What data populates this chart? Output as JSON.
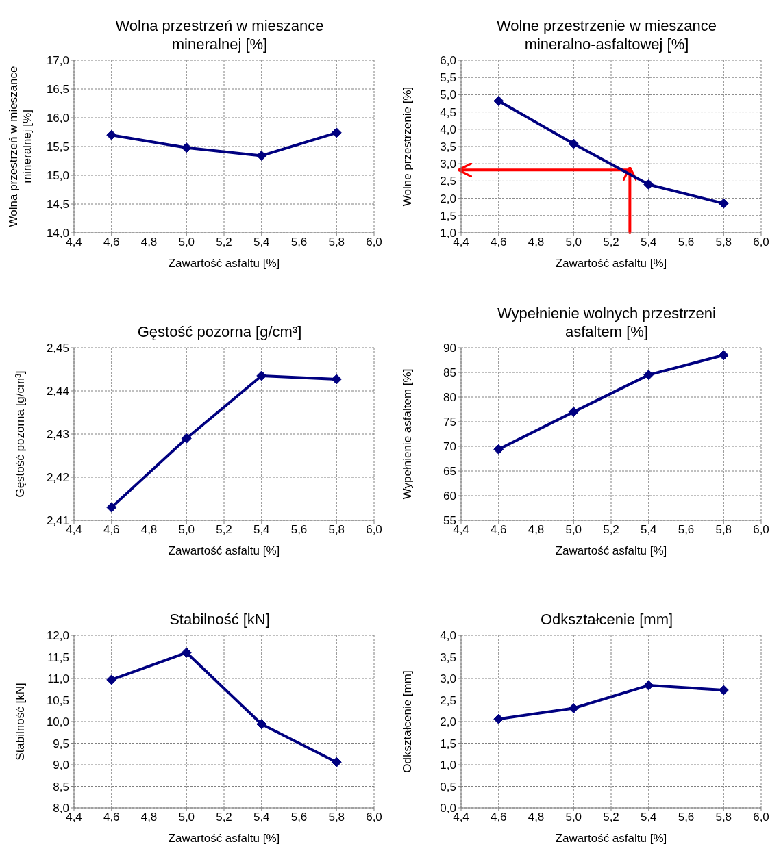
{
  "chart_data": [
    {
      "type": "line",
      "title": "Wolna przestrzeń w mieszance mineralnej [%]",
      "xlabel": "Zawartość asfaltu [%]",
      "ylabel": "Wolna przestrzeń w mieszance mineralnej [%]",
      "x": [
        4.6,
        5.0,
        5.4,
        5.8
      ],
      "series": [
        {
          "color": "#000080",
          "values": [
            15.7,
            15.48,
            15.34,
            15.74
          ]
        }
      ],
      "xlim": [
        4.4,
        6.0
      ],
      "xticks": [
        {
          "value": 4.4,
          "label": "4,4"
        },
        {
          "value": 4.6,
          "label": "4,6"
        },
        {
          "value": 4.8,
          "label": "4,8"
        },
        {
          "value": 5.0,
          "label": "5,0"
        },
        {
          "value": 5.2,
          "label": "5,2"
        },
        {
          "value": 5.4,
          "label": "5,4"
        },
        {
          "value": 5.6,
          "label": "5,6"
        },
        {
          "value": 5.8,
          "label": "5,8"
        },
        {
          "value": 6.0,
          "label": "6,0"
        }
      ],
      "ylim": [
        14,
        17
      ],
      "yticks": [
        {
          "value": 14,
          "label": "14,0"
        },
        {
          "value": 14.5,
          "label": "14,5"
        },
        {
          "value": 15,
          "label": "15,0"
        },
        {
          "value": 15.5,
          "label": "15,5"
        },
        {
          "value": 16,
          "label": "16,0"
        },
        {
          "value": 16.5,
          "label": "16,5"
        },
        {
          "value": 17,
          "label": "17,0"
        }
      ],
      "grid": true,
      "marker": "diamond",
      "line_style": "solid"
    },
    {
      "type": "line",
      "title": "Wolne przestrzenie w mieszance mineralno-asfaltowej [%]",
      "xlabel": "Zawartość asfaltu [%]",
      "ylabel": "Wolne przestrzenie [%]",
      "x": [
        4.6,
        5.0,
        5.4,
        5.8
      ],
      "series": [
        {
          "color": "#000080",
          "values": [
            4.82,
            3.58,
            2.4,
            1.85
          ]
        }
      ],
      "ref_lines": [
        {
          "axis": "x",
          "value": 5.3,
          "color": "#ff0000"
        },
        {
          "axis": "y",
          "value": 2.82,
          "color": "#ff0000"
        }
      ],
      "xlim": [
        4.4,
        6.0
      ],
      "xticks": [
        {
          "value": 4.4,
          "label": "4,4"
        },
        {
          "value": 4.6,
          "label": "4,6"
        },
        {
          "value": 4.8,
          "label": "4,8"
        },
        {
          "value": 5.0,
          "label": "5,0"
        },
        {
          "value": 5.2,
          "label": "5,2"
        },
        {
          "value": 5.4,
          "label": "5,4"
        },
        {
          "value": 5.6,
          "label": "5,6"
        },
        {
          "value": 5.8,
          "label": "5,8"
        },
        {
          "value": 6.0,
          "label": "6,0"
        }
      ],
      "ylim": [
        1,
        6
      ],
      "yticks": [
        {
          "value": 1,
          "label": "1,0"
        },
        {
          "value": 1.5,
          "label": "1,5"
        },
        {
          "value": 2,
          "label": "2,0"
        },
        {
          "value": 2.5,
          "label": "2,5"
        },
        {
          "value": 3,
          "label": "3,0"
        },
        {
          "value": 3.5,
          "label": "3,5"
        },
        {
          "value": 4,
          "label": "4,0"
        },
        {
          "value": 4.5,
          "label": "4,5"
        },
        {
          "value": 5,
          "label": "5,0"
        },
        {
          "value": 5.5,
          "label": "5,5"
        },
        {
          "value": 6,
          "label": "6,0"
        }
      ],
      "grid": true,
      "marker": "diamond",
      "line_style": "solid"
    },
    {
      "type": "line",
      "title": "Gęstość pozorna [g/cm³]",
      "xlabel": "Zawartość asfaltu [%]",
      "ylabel": "Gęstość pozorna [g/cm³]",
      "x": [
        4.6,
        5.0,
        5.4,
        5.8
      ],
      "series": [
        {
          "color": "#000080",
          "values": [
            2.413,
            2.429,
            2.4435,
            2.4427
          ]
        }
      ],
      "xlim": [
        4.4,
        6.0
      ],
      "xticks": [
        {
          "value": 4.4,
          "label": "4,4"
        },
        {
          "value": 4.6,
          "label": "4,6"
        },
        {
          "value": 4.8,
          "label": "4,8"
        },
        {
          "value": 5.0,
          "label": "5,0"
        },
        {
          "value": 5.2,
          "label": "5,2"
        },
        {
          "value": 5.4,
          "label": "5,4"
        },
        {
          "value": 5.6,
          "label": "5,6"
        },
        {
          "value": 5.8,
          "label": "5,8"
        },
        {
          "value": 6.0,
          "label": "6,0"
        }
      ],
      "ylim": [
        2.41,
        2.45
      ],
      "yticks": [
        {
          "value": 2.41,
          "label": "2,41"
        },
        {
          "value": 2.42,
          "label": "2,42"
        },
        {
          "value": 2.43,
          "label": "2,43"
        },
        {
          "value": 2.44,
          "label": "2,44"
        },
        {
          "value": 2.45,
          "label": "2,45"
        }
      ],
      "grid": true,
      "marker": "diamond",
      "line_style": "solid"
    },
    {
      "type": "line",
      "title": "Wypełnienie wolnych przestrzeni asfaltem [%]",
      "xlabel": "Zawartość asfaltu [%]",
      "ylabel": "Wypełnienie asfaltem [%]",
      "x": [
        4.6,
        5.0,
        5.4,
        5.8
      ],
      "series": [
        {
          "color": "#000080",
          "values": [
            69.4,
            77.0,
            84.5,
            88.5
          ]
        }
      ],
      "xlim": [
        4.4,
        6.0
      ],
      "xticks": [
        {
          "value": 4.4,
          "label": "4,4"
        },
        {
          "value": 4.6,
          "label": "4,6"
        },
        {
          "value": 4.8,
          "label": "4,8"
        },
        {
          "value": 5.0,
          "label": "5,0"
        },
        {
          "value": 5.2,
          "label": "5,2"
        },
        {
          "value": 5.4,
          "label": "5,4"
        },
        {
          "value": 5.6,
          "label": "5,6"
        },
        {
          "value": 5.8,
          "label": "5,8"
        },
        {
          "value": 6.0,
          "label": "6,0"
        }
      ],
      "ylim": [
        55,
        90
      ],
      "yticks": [
        55,
        60,
        65,
        70,
        75,
        80,
        85,
        90
      ],
      "grid": true,
      "marker": "diamond",
      "line_style": "solid"
    },
    {
      "type": "line",
      "title": "Stabilność [kN]",
      "xlabel": "Zawartość asfaltu [%]",
      "ylabel": "Stabilność [kN]",
      "x": [
        4.6,
        5.0,
        5.4,
        5.8
      ],
      "series": [
        {
          "color": "#000080",
          "values": [
            10.97,
            11.6,
            9.94,
            9.06
          ]
        }
      ],
      "xlim": [
        4.4,
        6.0
      ],
      "xticks": [
        {
          "value": 4.4,
          "label": "4,4"
        },
        {
          "value": 4.6,
          "label": "4,6"
        },
        {
          "value": 4.8,
          "label": "4,8"
        },
        {
          "value": 5.0,
          "label": "5,0"
        },
        {
          "value": 5.2,
          "label": "5,2"
        },
        {
          "value": 5.4,
          "label": "5,4"
        },
        {
          "value": 5.6,
          "label": "5,6"
        },
        {
          "value": 5.8,
          "label": "5,8"
        },
        {
          "value": 6.0,
          "label": "6,0"
        }
      ],
      "ylim": [
        8,
        12
      ],
      "yticks": [
        {
          "value": 8,
          "label": "8,0"
        },
        {
          "value": 8.5,
          "label": "8,5"
        },
        {
          "value": 9,
          "label": "9,0"
        },
        {
          "value": 9.5,
          "label": "9,5"
        },
        {
          "value": 10,
          "label": "10,0"
        },
        {
          "value": 10.5,
          "label": "10,5"
        },
        {
          "value": 11,
          "label": "11,0"
        },
        {
          "value": 11.5,
          "label": "11,5"
        },
        {
          "value": 12,
          "label": "12,0"
        }
      ],
      "grid": true,
      "marker": "diamond",
      "line_style": "solid"
    },
    {
      "type": "line",
      "title": "Odkształcenie [mm]",
      "xlabel": "Zawartość asfaltu [%]",
      "ylabel": "Odkształcenie [mm]",
      "x": [
        4.6,
        5.0,
        5.4,
        5.8
      ],
      "series": [
        {
          "color": "#000080",
          "values": [
            2.06,
            2.31,
            2.84,
            2.73
          ]
        }
      ],
      "xlim": [
        4.4,
        6.0
      ],
      "xticks": [
        {
          "value": 4.4,
          "label": "4,4"
        },
        {
          "value": 4.6,
          "label": "4,6"
        },
        {
          "value": 4.8,
          "label": "4,8"
        },
        {
          "value": 5.0,
          "label": "5,0"
        },
        {
          "value": 5.2,
          "label": "5,2"
        },
        {
          "value": 5.4,
          "label": "5,4"
        },
        {
          "value": 5.6,
          "label": "5,6"
        },
        {
          "value": 5.8,
          "label": "5,8"
        },
        {
          "value": 6.0,
          "label": "6,0"
        }
      ],
      "ylim": [
        0,
        4
      ],
      "yticks": [
        {
          "value": 0,
          "label": "0,0"
        },
        {
          "value": 0.5,
          "label": "0,5"
        },
        {
          "value": 1,
          "label": "1,0"
        },
        {
          "value": 1.5,
          "label": "1,5"
        },
        {
          "value": 2,
          "label": "2,0"
        },
        {
          "value": 2.5,
          "label": "2,5"
        },
        {
          "value": 3,
          "label": "3,0"
        },
        {
          "value": 3.5,
          "label": "3,5"
        },
        {
          "value": 4,
          "label": "4,0"
        }
      ],
      "grid": true,
      "marker": "diamond",
      "line_style": "solid"
    }
  ]
}
